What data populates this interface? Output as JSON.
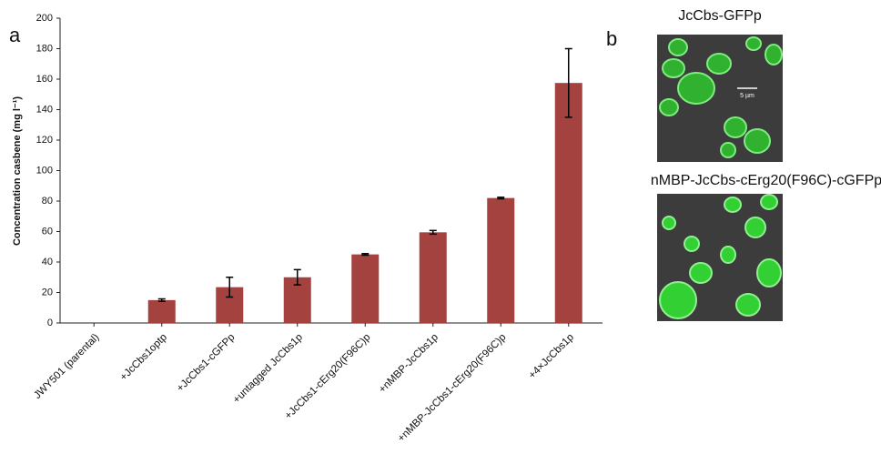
{
  "chart_data": {
    "type": "bar",
    "panel_label": "a",
    "y_label": "Concentration casbene (mg l⁻¹)",
    "categories": [
      "JWY501 (parental)",
      "+JcCbs1optp",
      "+JcCbs1-cGFPp",
      "+untagged JcCbs1p",
      "+JcCbs1-cErg20(F96C)p",
      "+nMBP-JcCbs1p",
      "+nMBP-JcCbs1-cErg20(F96C)p",
      "+4×JcCbs1p"
    ],
    "values": [
      0,
      15,
      23.5,
      30,
      45,
      59.5,
      82,
      157.5
    ],
    "errors": [
      0,
      0.8,
      6.5,
      5,
      0.5,
      1.2,
      0.5,
      22.5
    ],
    "color": "#a3423e",
    "ylim": [
      0,
      200
    ],
    "yticks": [
      0,
      20,
      40,
      60,
      80,
      100,
      120,
      140,
      160,
      180,
      200
    ]
  },
  "images": {
    "panel_label": "b",
    "top_title": "JcCbs-GFPp",
    "scale_bar": "5 µm",
    "bottom_title": "nMBP-JcCbs-cErg20(F96C)-cGFPp"
  }
}
